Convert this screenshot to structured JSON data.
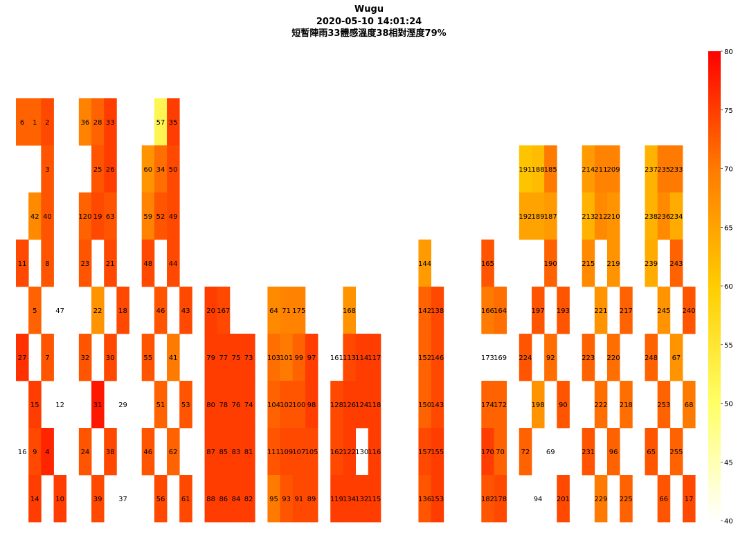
{
  "chart_data": {
    "type": "heatmap",
    "title": "Wugu",
    "subtitle": "2020-05-10 14:01:24",
    "caption": "短暫陣雨33體感溫度38相對溼度79%",
    "colorbar": {
      "min": 40,
      "max": 80,
      "ticks": [
        40,
        45,
        50,
        55,
        60,
        65,
        70,
        75,
        80
      ]
    },
    "cells": [
      {
        "label": "6",
        "col": 0,
        "row": 0,
        "value": 72
      },
      {
        "label": "1",
        "col": 1,
        "row": 0,
        "value": 72
      },
      {
        "label": "2",
        "col": 2,
        "row": 0,
        "value": 74
      },
      {
        "label": "36",
        "col": 5,
        "row": 0,
        "value": 69
      },
      {
        "label": "28",
        "col": 6,
        "row": 0,
        "value": 72
      },
      {
        "label": "33",
        "col": 7,
        "row": 0,
        "value": 75
      },
      {
        "label": "57",
        "col": 11,
        "row": 0,
        "value": 52
      },
      {
        "label": "35",
        "col": 12,
        "row": 0,
        "value": 75
      },
      {
        "label": "3",
        "col": 2,
        "row": 1,
        "value": 73
      },
      {
        "label": "25",
        "col": 6,
        "row": 1,
        "value": 73
      },
      {
        "label": "26",
        "col": 7,
        "row": 1,
        "value": 75
      },
      {
        "label": "60",
        "col": 10,
        "row": 1,
        "value": 67
      },
      {
        "label": "34",
        "col": 11,
        "row": 1,
        "value": 71
      },
      {
        "label": "50",
        "col": 12,
        "row": 1,
        "value": 74
      },
      {
        "label": "191",
        "col": 40,
        "row": 1,
        "value": 61
      },
      {
        "label": "188",
        "col": 41,
        "row": 1,
        "value": 62
      },
      {
        "label": "185",
        "col": 42,
        "row": 1,
        "value": 70
      },
      {
        "label": "214",
        "col": 45,
        "row": 1,
        "value": 66
      },
      {
        "label": "211",
        "col": 46,
        "row": 1,
        "value": 69
      },
      {
        "label": "209",
        "col": 47,
        "row": 1,
        "value": 69
      },
      {
        "label": "237",
        "col": 50,
        "row": 1,
        "value": 63
      },
      {
        "label": "235",
        "col": 51,
        "row": 1,
        "value": 70
      },
      {
        "label": "233",
        "col": 52,
        "row": 1,
        "value": 70
      },
      {
        "label": "42",
        "col": 1,
        "row": 2,
        "value": 68
      },
      {
        "label": "40",
        "col": 2,
        "row": 2,
        "value": 73
      },
      {
        "label": "120",
        "col": 5,
        "row": 2,
        "value": 72
      },
      {
        "label": "19",
        "col": 6,
        "row": 2,
        "value": 74
      },
      {
        "label": "63",
        "col": 7,
        "row": 2,
        "value": 73
      },
      {
        "label": "59",
        "col": 10,
        "row": 2,
        "value": 69
      },
      {
        "label": "52",
        "col": 11,
        "row": 2,
        "value": 73
      },
      {
        "label": "49",
        "col": 12,
        "row": 2,
        "value": 74
      },
      {
        "label": "192",
        "col": 40,
        "row": 2,
        "value": 65
      },
      {
        "label": "189",
        "col": 41,
        "row": 2,
        "value": 65
      },
      {
        "label": "187",
        "col": 42,
        "row": 2,
        "value": 66
      },
      {
        "label": "213",
        "col": 45,
        "row": 2,
        "value": 63
      },
      {
        "label": "212",
        "col": 46,
        "row": 2,
        "value": 68
      },
      {
        "label": "210",
        "col": 47,
        "row": 2,
        "value": 67
      },
      {
        "label": "238",
        "col": 50,
        "row": 2,
        "value": 63
      },
      {
        "label": "236",
        "col": 51,
        "row": 2,
        "value": 68
      },
      {
        "label": "234",
        "col": 52,
        "row": 2,
        "value": 64
      },
      {
        "label": "11",
        "col": 0,
        "row": 3,
        "value": 74
      },
      {
        "label": "8",
        "col": 2,
        "row": 3,
        "value": 73
      },
      {
        "label": "23",
        "col": 5,
        "row": 3,
        "value": 73
      },
      {
        "label": "21",
        "col": 7,
        "row": 3,
        "value": 74
      },
      {
        "label": "48",
        "col": 10,
        "row": 3,
        "value": 74
      },
      {
        "label": "44",
        "col": 12,
        "row": 3,
        "value": 74
      },
      {
        "label": "144",
        "col": 32,
        "row": 3,
        "value": 66
      },
      {
        "label": "165",
        "col": 37,
        "row": 3,
        "value": 73
      },
      {
        "label": "190",
        "col": 42,
        "row": 3,
        "value": 72
      },
      {
        "label": "215",
        "col": 45,
        "row": 3,
        "value": 68
      },
      {
        "label": "219",
        "col": 47,
        "row": 3,
        "value": 67
      },
      {
        "label": "239",
        "col": 50,
        "row": 3,
        "value": 64
      },
      {
        "label": "243",
        "col": 52,
        "row": 3,
        "value": 72
      },
      {
        "label": "5",
        "col": 1,
        "row": 4,
        "value": 72
      },
      {
        "label": "47",
        "col": 3,
        "row": 4,
        "value": null
      },
      {
        "label": "22",
        "col": 6,
        "row": 4,
        "value": 67
      },
      {
        "label": "18",
        "col": 8,
        "row": 4,
        "value": 74
      },
      {
        "label": "46",
        "col": 11,
        "row": 4,
        "value": 73
      },
      {
        "label": "43",
        "col": 13,
        "row": 4,
        "value": 74
      },
      {
        "label": "20",
        "col": 15,
        "row": 4,
        "value": 75
      },
      {
        "label": "167",
        "col": 16,
        "row": 4,
        "value": 74
      },
      {
        "label": "64",
        "col": 20,
        "row": 4,
        "value": 68
      },
      {
        "label": "71",
        "col": 21,
        "row": 4,
        "value": 69
      },
      {
        "label": "175",
        "col": 22,
        "row": 4,
        "value": 69
      },
      {
        "label": "168",
        "col": 26,
        "row": 4,
        "value": 67
      },
      {
        "label": "142",
        "col": 32,
        "row": 4,
        "value": 72
      },
      {
        "label": "138",
        "col": 33,
        "row": 4,
        "value": 74
      },
      {
        "label": "166",
        "col": 37,
        "row": 4,
        "value": 70
      },
      {
        "label": "164",
        "col": 38,
        "row": 4,
        "value": 71
      },
      {
        "label": "197",
        "col": 41,
        "row": 4,
        "value": 73
      },
      {
        "label": "193",
        "col": 43,
        "row": 4,
        "value": 73
      },
      {
        "label": "221",
        "col": 46,
        "row": 4,
        "value": 67
      },
      {
        "label": "217",
        "col": 48,
        "row": 4,
        "value": 72
      },
      {
        "label": "245",
        "col": 51,
        "row": 4,
        "value": 67
      },
      {
        "label": "240",
        "col": 53,
        "row": 4,
        "value": 73
      },
      {
        "label": "27",
        "col": 0,
        "row": 5,
        "value": 76
      },
      {
        "label": "7",
        "col": 2,
        "row": 5,
        "value": 73
      },
      {
        "label": "32",
        "col": 5,
        "row": 5,
        "value": 73
      },
      {
        "label": "30",
        "col": 7,
        "row": 5,
        "value": 74
      },
      {
        "label": "55",
        "col": 10,
        "row": 5,
        "value": 73
      },
      {
        "label": "41",
        "col": 12,
        "row": 5,
        "value": 70
      },
      {
        "label": "79",
        "col": 15,
        "row": 5,
        "value": 75
      },
      {
        "label": "77",
        "col": 16,
        "row": 5,
        "value": 75
      },
      {
        "label": "75",
        "col": 17,
        "row": 5,
        "value": 75
      },
      {
        "label": "73",
        "col": 18,
        "row": 5,
        "value": 75
      },
      {
        "label": "103",
        "col": 20,
        "row": 5,
        "value": 71
      },
      {
        "label": "101",
        "col": 21,
        "row": 5,
        "value": 70
      },
      {
        "label": "99",
        "col": 22,
        "row": 5,
        "value": 72
      },
      {
        "label": "97",
        "col": 23,
        "row": 5,
        "value": 75
      },
      {
        "label": "161",
        "col": 25,
        "row": 5,
        "value": null
      },
      {
        "label": "113",
        "col": 26,
        "row": 5,
        "value": 74
      },
      {
        "label": "114",
        "col": 27,
        "row": 5,
        "value": 75
      },
      {
        "label": "117",
        "col": 28,
        "row": 5,
        "value": 75
      },
      {
        "label": "152",
        "col": 32,
        "row": 5,
        "value": 72
      },
      {
        "label": "146",
        "col": 33,
        "row": 5,
        "value": 74
      },
      {
        "label": "173",
        "col": 37,
        "row": 5,
        "value": null
      },
      {
        "label": "169",
        "col": 38,
        "row": 5,
        "value": null
      },
      {
        "label": "224",
        "col": 40,
        "row": 5,
        "value": 73
      },
      {
        "label": "92",
        "col": 42,
        "row": 5,
        "value": 71
      },
      {
        "label": "223",
        "col": 45,
        "row": 5,
        "value": 72
      },
      {
        "label": "220",
        "col": 47,
        "row": 5,
        "value": 71
      },
      {
        "label": "248",
        "col": 50,
        "row": 5,
        "value": 72
      },
      {
        "label": "67",
        "col": 52,
        "row": 5,
        "value": 67
      },
      {
        "label": "15",
        "col": 1,
        "row": 6,
        "value": 75
      },
      {
        "label": "12",
        "col": 3,
        "row": 6,
        "value": null
      },
      {
        "label": "31",
        "col": 6,
        "row": 6,
        "value": 78
      },
      {
        "label": "29",
        "col": 8,
        "row": 6,
        "value": null
      },
      {
        "label": "51",
        "col": 11,
        "row": 6,
        "value": 72
      },
      {
        "label": "53",
        "col": 13,
        "row": 6,
        "value": 73
      },
      {
        "label": "80",
        "col": 15,
        "row": 6,
        "value": 75
      },
      {
        "label": "78",
        "col": 16,
        "row": 6,
        "value": 75
      },
      {
        "label": "76",
        "col": 17,
        "row": 6,
        "value": 75
      },
      {
        "label": "74",
        "col": 18,
        "row": 6,
        "value": 75
      },
      {
        "label": "104",
        "col": 20,
        "row": 6,
        "value": 72
      },
      {
        "label": "102",
        "col": 21,
        "row": 6,
        "value": 73
      },
      {
        "label": "100",
        "col": 22,
        "row": 6,
        "value": 73
      },
      {
        "label": "98",
        "col": 23,
        "row": 6,
        "value": 75
      },
      {
        "label": "128",
        "col": 25,
        "row": 6,
        "value": 74
      },
      {
        "label": "126",
        "col": 26,
        "row": 6,
        "value": 75
      },
      {
        "label": "124",
        "col": 27,
        "row": 6,
        "value": 75
      },
      {
        "label": "118",
        "col": 28,
        "row": 6,
        "value": 75
      },
      {
        "label": "150",
        "col": 32,
        "row": 6,
        "value": 72
      },
      {
        "label": "143",
        "col": 33,
        "row": 6,
        "value": 74
      },
      {
        "label": "174",
        "col": 37,
        "row": 6,
        "value": 72
      },
      {
        "label": "172",
        "col": 38,
        "row": 6,
        "value": 72
      },
      {
        "label": "198",
        "col": 41,
        "row": 6,
        "value": 67
      },
      {
        "label": "90",
        "col": 43,
        "row": 6,
        "value": 73
      },
      {
        "label": "222",
        "col": 46,
        "row": 6,
        "value": 71
      },
      {
        "label": "218",
        "col": 48,
        "row": 6,
        "value": 71
      },
      {
        "label": "253",
        "col": 51,
        "row": 6,
        "value": 72
      },
      {
        "label": "68",
        "col": 53,
        "row": 6,
        "value": 70
      },
      {
        "label": "16",
        "col": 0,
        "row": 7,
        "value": null
      },
      {
        "label": "9",
        "col": 1,
        "row": 7,
        "value": 74
      },
      {
        "label": "4",
        "col": 2,
        "row": 7,
        "value": 77
      },
      {
        "label": "24",
        "col": 5,
        "row": 7,
        "value": 73
      },
      {
        "label": "38",
        "col": 7,
        "row": 7,
        "value": 74
      },
      {
        "label": "46",
        "col": 10,
        "row": 7,
        "value": 73
      },
      {
        "label": "62",
        "col": 12,
        "row": 7,
        "value": 72
      },
      {
        "label": "87",
        "col": 15,
        "row": 7,
        "value": 75
      },
      {
        "label": "85",
        "col": 16,
        "row": 7,
        "value": 75
      },
      {
        "label": "83",
        "col": 17,
        "row": 7,
        "value": 75
      },
      {
        "label": "81",
        "col": 18,
        "row": 7,
        "value": 75
      },
      {
        "label": "111",
        "col": 20,
        "row": 7,
        "value": 73
      },
      {
        "label": "109",
        "col": 21,
        "row": 7,
        "value": 74
      },
      {
        "label": "107",
        "col": 22,
        "row": 7,
        "value": 74
      },
      {
        "label": "105",
        "col": 23,
        "row": 7,
        "value": 74
      },
      {
        "label": "162",
        "col": 25,
        "row": 7,
        "value": 74
      },
      {
        "label": "122",
        "col": 26,
        "row": 7,
        "value": 75
      },
      {
        "label": "130",
        "col": 27,
        "row": 7,
        "value": null
      },
      {
        "label": "116",
        "col": 28,
        "row": 7,
        "value": 75
      },
      {
        "label": "157",
        "col": 32,
        "row": 7,
        "value": 74
      },
      {
        "label": "155",
        "col": 33,
        "row": 7,
        "value": 75
      },
      {
        "label": "170",
        "col": 37,
        "row": 7,
        "value": 75
      },
      {
        "label": "70",
        "col": 38,
        "row": 7,
        "value": 72
      },
      {
        "label": "72",
        "col": 40,
        "row": 7,
        "value": 72
      },
      {
        "label": "69",
        "col": 42,
        "row": 7,
        "value": null
      },
      {
        "label": "231",
        "col": 45,
        "row": 7,
        "value": 73
      },
      {
        "label": "96",
        "col": 47,
        "row": 7,
        "value": 72
      },
      {
        "label": "65",
        "col": 50,
        "row": 7,
        "value": 73
      },
      {
        "label": "255",
        "col": 52,
        "row": 7,
        "value": 72
      },
      {
        "label": "14",
        "col": 1,
        "row": 8,
        "value": 75
      },
      {
        "label": "10",
        "col": 3,
        "row": 8,
        "value": 75
      },
      {
        "label": "39",
        "col": 6,
        "row": 8,
        "value": 74
      },
      {
        "label": "37",
        "col": 8,
        "row": 8,
        "value": null
      },
      {
        "label": "56",
        "col": 11,
        "row": 8,
        "value": 74
      },
      {
        "label": "61",
        "col": 13,
        "row": 8,
        "value": 74
      },
      {
        "label": "88",
        "col": 15,
        "row": 8,
        "value": 75
      },
      {
        "label": "86",
        "col": 16,
        "row": 8,
        "value": 75
      },
      {
        "label": "84",
        "col": 17,
        "row": 8,
        "value": 75
      },
      {
        "label": "82",
        "col": 18,
        "row": 8,
        "value": 75
      },
      {
        "label": "95",
        "col": 20,
        "row": 8,
        "value": 70
      },
      {
        "label": "93",
        "col": 21,
        "row": 8,
        "value": 73
      },
      {
        "label": "91",
        "col": 22,
        "row": 8,
        "value": 74
      },
      {
        "label": "89",
        "col": 23,
        "row": 8,
        "value": 74
      },
      {
        "label": "119",
        "col": 25,
        "row": 8,
        "value": 75
      },
      {
        "label": "134",
        "col": 26,
        "row": 8,
        "value": 75
      },
      {
        "label": "132",
        "col": 27,
        "row": 8,
        "value": 75
      },
      {
        "label": "115",
        "col": 28,
        "row": 8,
        "value": 75
      },
      {
        "label": "136",
        "col": 32,
        "row": 8,
        "value": 73
      },
      {
        "label": "153",
        "col": 33,
        "row": 8,
        "value": 75
      },
      {
        "label": "182",
        "col": 37,
        "row": 8,
        "value": 73
      },
      {
        "label": "178",
        "col": 38,
        "row": 8,
        "value": 74
      },
      {
        "label": "94",
        "col": 41,
        "row": 8,
        "value": null
      },
      {
        "label": "201",
        "col": 43,
        "row": 8,
        "value": 74
      },
      {
        "label": "229",
        "col": 46,
        "row": 8,
        "value": 70
      },
      {
        "label": "225",
        "col": 48,
        "row": 8,
        "value": 72
      },
      {
        "label": "66",
        "col": 51,
        "row": 8,
        "value": 73
      },
      {
        "label": "17",
        "col": 53,
        "row": 8,
        "value": 74
      }
    ]
  }
}
